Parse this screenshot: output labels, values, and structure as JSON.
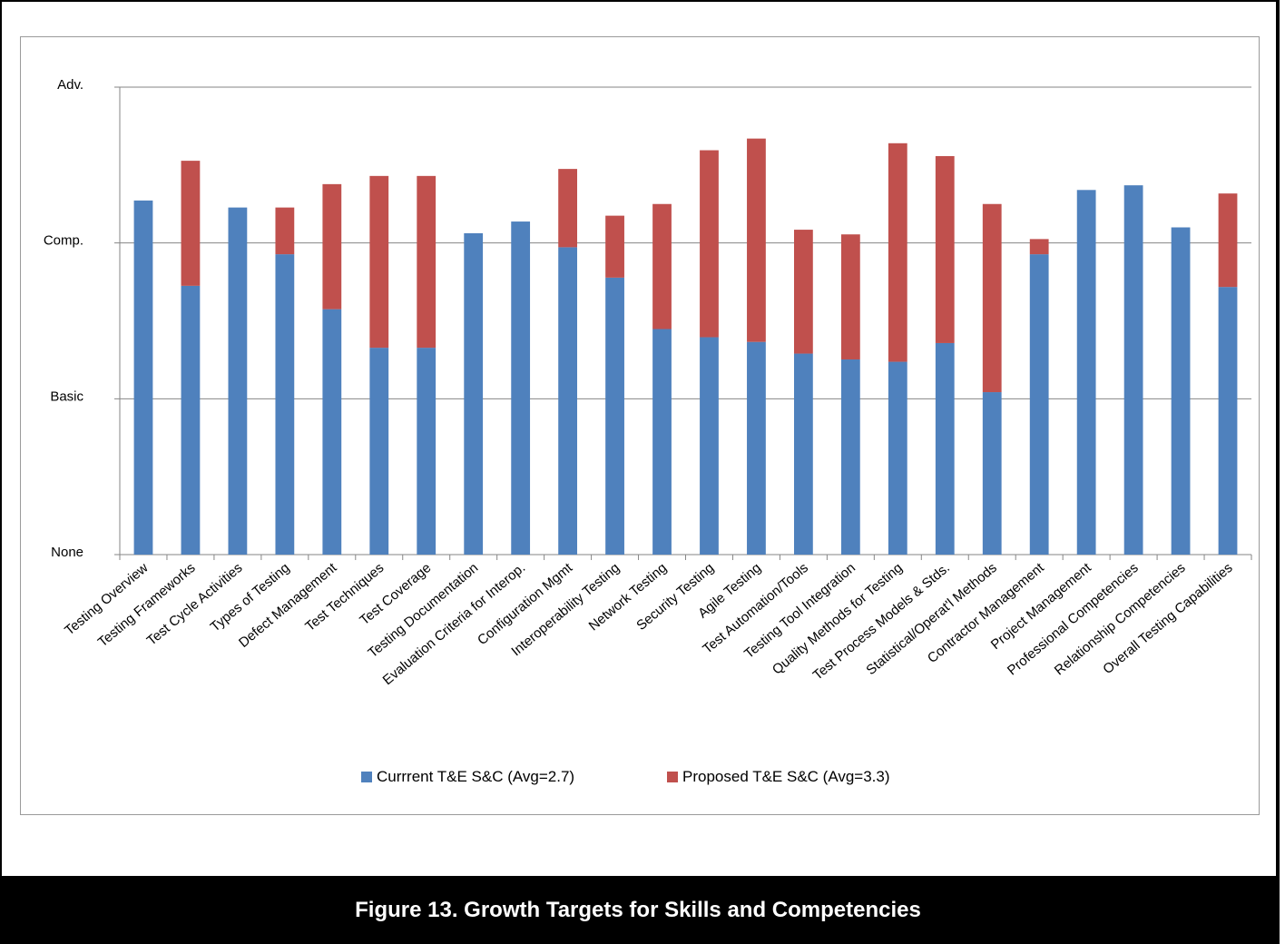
{
  "figure_caption": "Figure 13. Growth Targets for Skills and Competencies",
  "colors": {
    "current": "#4f81bd",
    "proposed": "#c0504d",
    "grid": "#868686"
  },
  "chart_data": {
    "type": "bar",
    "stacked": true,
    "title": "",
    "xlabel": "",
    "ylabel": "",
    "ylim": [
      0,
      4
    ],
    "yticks": [
      {
        "value": 0,
        "label": "None"
      },
      {
        "value": 1.333,
        "label": "Basic"
      },
      {
        "value": 2.667,
        "label": "Comp."
      },
      {
        "value": 4,
        "label": "Adv."
      }
    ],
    "grid": true,
    "legend_position": "bottom",
    "categories": [
      "Testing  Overview",
      "Testing Frameworks",
      "Test Cycle Activities",
      "Types of Testing",
      "Defect Management",
      "Test Techniques",
      "Test Coverage",
      "Testing Documentation",
      "Evaluation Criteria for Interop.",
      "Configuration Mgmt",
      "Interoperability Testing",
      "Network Testing",
      "Security Testing",
      "Agile Testing",
      "Test Automation/Tools",
      "Testing Tool Integration",
      "Quality Methods for Testing",
      "Test Process Models & Stds.",
      "Statistical/Operat'l Methods",
      "Contractor Management",
      "Project Management",
      "Professional Competencies",
      "Relationship Competencies",
      "Overall Testing Capabilities"
    ],
    "series": [
      {
        "name": "Currrent T&E S&C (Avg=2.7)",
        "values": [
          3.03,
          2.3,
          2.97,
          2.57,
          2.1,
          1.77,
          1.77,
          2.75,
          2.85,
          2.63,
          2.37,
          1.93,
          1.86,
          1.82,
          1.72,
          1.67,
          1.65,
          1.81,
          1.39,
          2.57,
          3.12,
          3.16,
          2.8,
          2.29
        ]
      },
      {
        "name": "Proposed T&E S&C (Avg=3.3)",
        "values": [
          0,
          1.07,
          0,
          0.4,
          1.07,
          1.47,
          1.47,
          0,
          0,
          0.67,
          0.53,
          1.07,
          1.6,
          1.74,
          1.06,
          1.07,
          1.87,
          1.6,
          1.61,
          0.13,
          0,
          0,
          0,
          0.8
        ]
      }
    ]
  }
}
